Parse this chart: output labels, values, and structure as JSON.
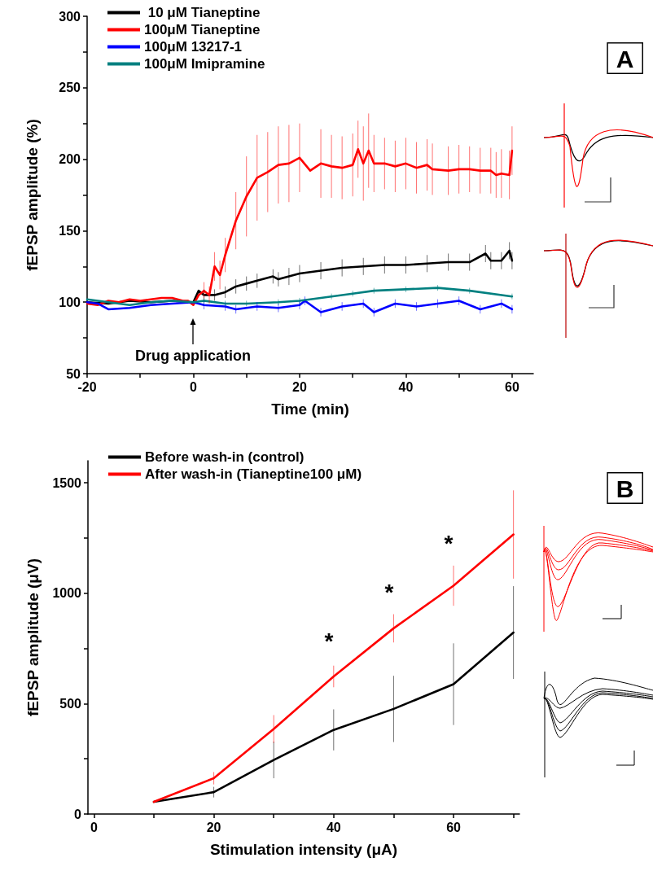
{
  "chart_data": [
    {
      "type": "line",
      "xlabel": "Time (min)",
      "ylabel": "fEPSP amplitude (%)",
      "xlim": [
        -20,
        64
      ],
      "xticks": [
        -20,
        {
          "value": -10,
          "label": null
        },
        0,
        {
          "value": 10,
          "label": null
        },
        20,
        {
          "value": 30,
          "label": null
        },
        40,
        {
          "value": 50,
          "label": null
        },
        60
      ],
      "ylim": [
        50,
        300
      ],
      "yticks": [
        50,
        {
          "value": 75,
          "label": null
        },
        100,
        {
          "value": 125,
          "label": null
        },
        150,
        {
          "value": 175,
          "label": null
        },
        200,
        {
          "value": 225,
          "label": null
        },
        250,
        {
          "value": 275,
          "label": null
        },
        300
      ],
      "grid": false,
      "legend": "top left",
      "marker": "none",
      "line_style": "solid",
      "annotations": [
        "Drug application",
        "A"
      ],
      "series": [
        {
          "name": " 10 μM Tianeptine",
          "color": "#000000",
          "x": [
            -20,
            -16,
            -12,
            -8,
            -4,
            0,
            1,
            2,
            4,
            6,
            8,
            10,
            12,
            15,
            16,
            18,
            20,
            24,
            28,
            32,
            36,
            40,
            44,
            48,
            52,
            55,
            56,
            58,
            59.5,
            60
          ],
          "values": [
            100,
            99,
            101,
            100,
            101,
            100,
            108,
            105,
            105,
            107,
            111,
            113,
            115,
            118,
            116,
            118,
            120,
            122,
            124,
            125,
            126,
            126,
            127,
            128,
            128,
            134,
            129,
            129,
            136,
            129
          ],
          "errors": [
            null,
            null,
            null,
            null,
            null,
            null,
            null,
            4,
            4,
            4,
            5,
            5,
            5,
            5,
            5,
            6,
            6,
            6,
            6,
            6,
            6,
            6,
            6,
            6,
            6,
            6,
            6,
            6,
            6,
            6
          ]
        },
        {
          "name": "100μM Tianeptine",
          "color": "#ff0000",
          "x": [
            -20,
            -18,
            -16,
            -14,
            -12,
            -10,
            -8,
            -6,
            -4,
            -2,
            -1,
            0,
            1,
            2,
            3,
            4,
            5,
            6,
            8,
            10,
            12,
            14,
            16,
            18,
            20,
            22,
            24,
            26,
            28,
            30,
            31,
            32,
            33,
            34,
            36,
            38,
            40,
            42,
            44,
            45,
            48,
            50,
            52,
            54,
            56,
            57,
            58,
            59.5,
            60
          ],
          "values": [
            99,
            98,
            101,
            100,
            102,
            101,
            102,
            103,
            103,
            101,
            101,
            98,
            105,
            108,
            105,
            125,
            119,
            133,
            157,
            174,
            187,
            191,
            196,
            197,
            201,
            192,
            197,
            195,
            194,
            196,
            207,
            197,
            206,
            197,
            197,
            195,
            197,
            194,
            196,
            193,
            192,
            193,
            193,
            192,
            192,
            189,
            190,
            189,
            206
          ],
          "errors": [
            null,
            null,
            null,
            null,
            null,
            null,
            null,
            null,
            null,
            null,
            null,
            null,
            null,
            6,
            6,
            10,
            10,
            12,
            20,
            28,
            30,
            28,
            27,
            27,
            24,
            null,
            24,
            22,
            22,
            22,
            20,
            26,
            26,
            20,
            18,
            18,
            18,
            18,
            18,
            18,
            17,
            17,
            16,
            16,
            16,
            16,
            17,
            17,
            17
          ]
        },
        {
          "name": "100μM 13217-1",
          "color": "#0000ff",
          "x": [
            -20,
            -18,
            -16,
            -12,
            -8,
            -4,
            0,
            2,
            6,
            8,
            12,
            16,
            20,
            21,
            24,
            28,
            32,
            34,
            38,
            42,
            46,
            50,
            54,
            58,
            60
          ],
          "values": [
            100,
            99,
            95,
            96,
            98,
            99,
            100,
            98,
            97,
            95,
            97,
            96,
            98,
            101,
            93,
            97,
            99,
            93,
            99,
            97,
            99,
            101,
            95,
            99,
            95
          ],
          "errors": [
            null,
            null,
            null,
            null,
            null,
            null,
            null,
            3,
            3,
            3,
            3,
            3,
            3,
            3,
            3,
            3,
            3,
            3,
            3,
            3,
            3,
            3,
            3,
            3,
            3
          ]
        },
        {
          "name": "100μM Imipramine",
          "color": "#008080",
          "x": [
            -20,
            -16,
            -12,
            -8,
            -4,
            0,
            2,
            6,
            10,
            16,
            20,
            26,
            30,
            34,
            40,
            46,
            52,
            60
          ],
          "values": [
            102,
            100,
            98,
            100,
            101,
            100,
            101,
            99,
            99,
            100,
            101,
            104,
            106,
            108,
            109,
            110,
            108,
            104
          ],
          "errors": [
            null,
            null,
            null,
            null,
            null,
            null,
            2,
            2,
            2,
            2,
            2,
            2,
            2,
            2,
            2,
            2,
            2,
            2
          ]
        }
      ]
    },
    {
      "type": "line",
      "xlabel": "Stimulation intensity (μA)",
      "ylabel": "fEPSP amplitude (μV)",
      "xlim": [
        -1,
        71
      ],
      "xticks": [
        0,
        {
          "value": 10,
          "label": null
        },
        20,
        {
          "value": 30,
          "label": null
        },
        40,
        {
          "value": 50,
          "label": null
        },
        60,
        {
          "value": 70,
          "label": null
        }
      ],
      "ylim": [
        0,
        1600
      ],
      "yticks": [
        0,
        {
          "value": 250,
          "label": null
        },
        500,
        {
          "value": 750,
          "label": null
        },
        1000,
        {
          "value": 1250,
          "label": null
        },
        1500
      ],
      "grid": false,
      "legend": "top left",
      "marker": "none",
      "line_style": "solid",
      "annotations": [
        "*",
        "*",
        "*",
        "B"
      ],
      "series": [
        {
          "name": "Before wash-in (control)",
          "color": "#000000",
          "x": [
            10,
            20,
            30,
            40,
            50,
            60,
            70
          ],
          "values": [
            55,
            99,
            245,
            381,
            476,
            588,
            822
          ],
          "errors": [
            null,
            24,
            83,
            93,
            150,
            185,
            210
          ]
        },
        {
          "name": "After wash-in (Tianeptine100 μM)",
          "color": "#ff0000",
          "x": [
            10,
            20,
            30,
            40,
            50,
            60,
            70
          ],
          "values": [
            55,
            162,
            385,
            623,
            841,
            1034,
            1266
          ],
          "errors": [
            null,
            28,
            63,
            49,
            64,
            91,
            200
          ]
        }
      ]
    }
  ]
}
